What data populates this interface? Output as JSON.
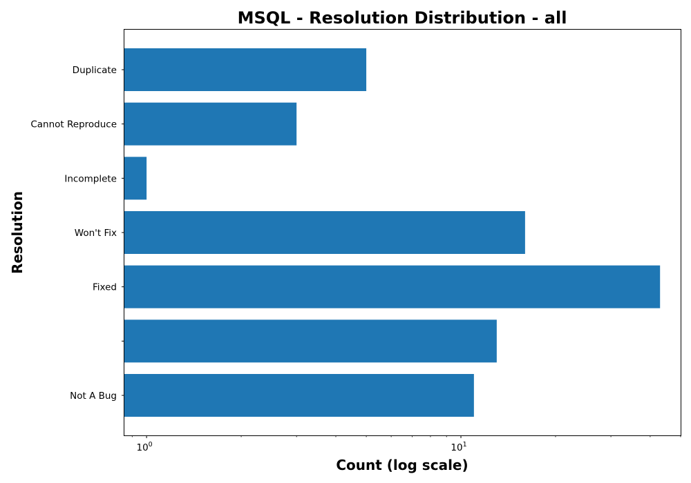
{
  "chart_data": {
    "type": "bar",
    "orientation": "horizontal",
    "title": "MSQL - Resolution Distribution - all",
    "xlabel": "Count (log scale)",
    "ylabel": "Resolution",
    "x_scale": "log",
    "xlim": [
      0.85,
      50
    ],
    "categories": [
      "Duplicate",
      "Cannot Reproduce",
      "Incomplete",
      "Won't Fix",
      "Fixed",
      "",
      "Not A Bug"
    ],
    "values": [
      5,
      3,
      1,
      16,
      43,
      13,
      11
    ],
    "x_ticks": [
      {
        "base": "10",
        "exp": "0",
        "value": 1
      },
      {
        "base": "10",
        "exp": "1",
        "value": 10
      }
    ],
    "bar_color": "#1f77b4",
    "grid": false,
    "legend": "none"
  }
}
